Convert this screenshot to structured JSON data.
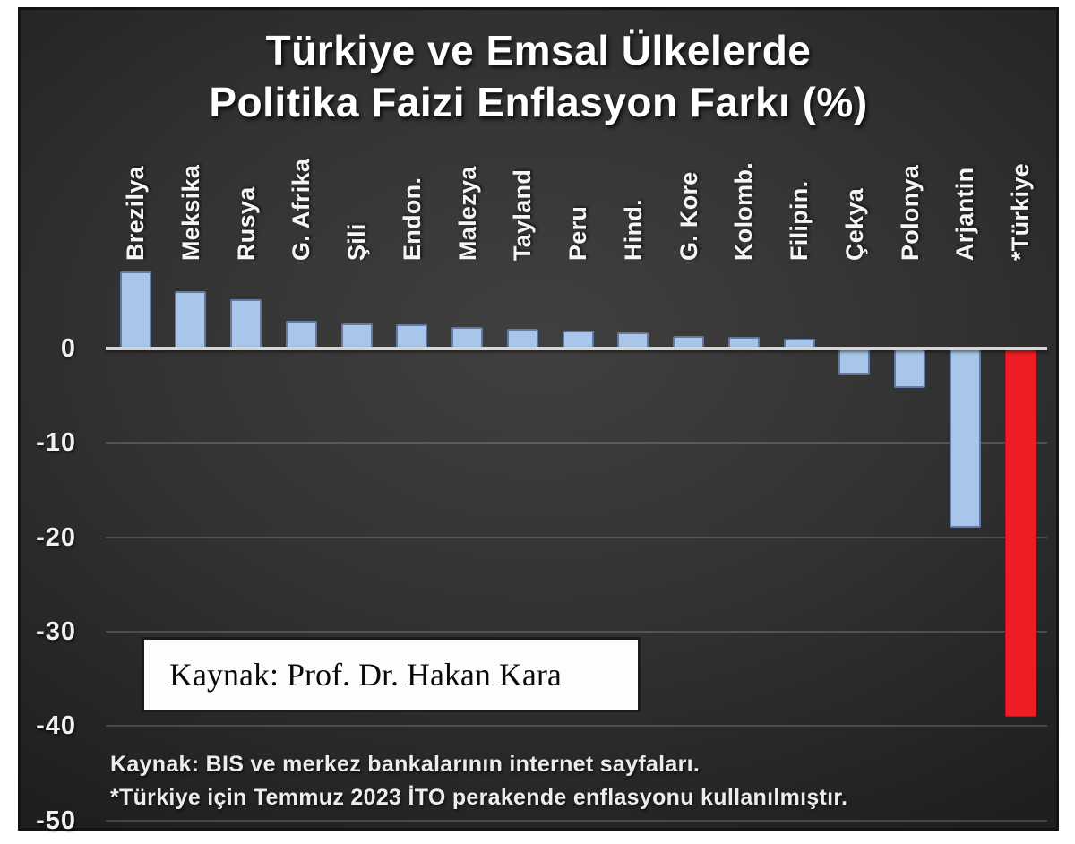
{
  "title": {
    "line1": "Türkiye ve Emsal Ülkelerde",
    "line2": "Politika Faizi Enflasyon Farkı (%)"
  },
  "source_box": {
    "text": "Kaynak: Prof. Dr. Hakan Kara"
  },
  "footnotes": {
    "line1": "Kaynak: BIS ve merkez bankalarının internet sayfaları.",
    "line2": "*Türkiye için Temmuz 2023 İTO perakende enflasyonu kullanılmıştır."
  },
  "colors": {
    "bar_default": "#a8c6ea",
    "bar_highlight": "#ee1c24",
    "zero_line": "#d6d6d6",
    "background_dark": "#2e2e2e",
    "text_light": "#f2f2f2"
  },
  "chart_data": {
    "type": "bar",
    "title": "Türkiye ve Emsal Ülkelerde Politika Faizi Enflasyon Farkı (%)",
    "categories": [
      "Brezilya",
      "Meksika",
      "Rusya",
      "G. Afrika",
      "Şili",
      "Endon.",
      "Malezya",
      "Tayland",
      "Peru",
      "Hind.",
      "G. Kore",
      "Kolomb.",
      "Filipin.",
      "Çekya",
      "Polonya",
      "Arjantin",
      "*Türkiye"
    ],
    "values": [
      8.2,
      6.1,
      5.2,
      2.9,
      2.7,
      2.6,
      2.3,
      2.1,
      1.9,
      1.7,
      1.3,
      1.2,
      1.0,
      -2.8,
      -4.2,
      -19,
      -39
    ],
    "highlight_category": "*Türkiye",
    "highlight_index": 16,
    "xlabel": "",
    "ylabel": "",
    "ylim": [
      -50,
      10
    ],
    "yticks": [
      0,
      -10,
      -20,
      -30,
      -40,
      -50
    ],
    "grid": "horizontal",
    "legend": "none",
    "category_label_rotation": -90
  }
}
